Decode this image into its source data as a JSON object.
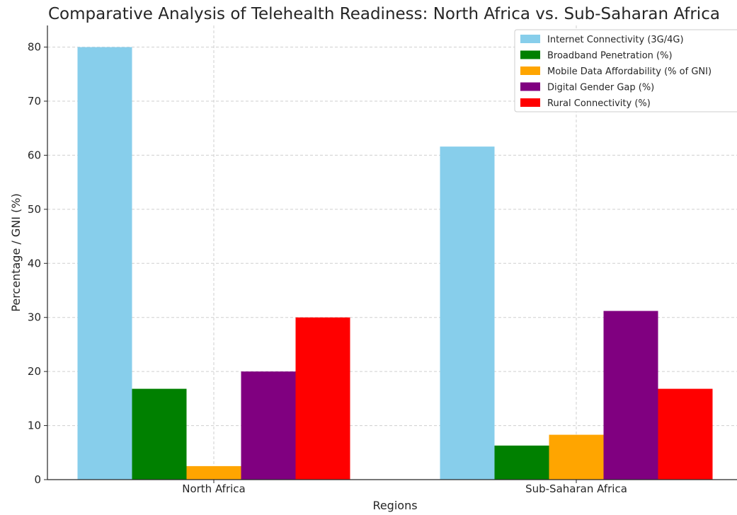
{
  "chart_data": {
    "type": "bar",
    "title": "Comparative Analysis of Telehealth Readiness: North Africa vs. Sub-Saharan Africa",
    "xlabel": "Regions",
    "ylabel": "Percentage / GNI (%)",
    "categories": [
      "North Africa",
      "Sub-Saharan Africa"
    ],
    "ylim": [
      0,
      84
    ],
    "yticks": [
      0,
      10,
      20,
      30,
      40,
      50,
      60,
      70,
      80
    ],
    "grid": true,
    "legend_position": "top-right",
    "series": [
      {
        "name": "Internet Connectivity (3G/4G)",
        "color": "#87CEEB",
        "values": [
          80,
          61.6
        ]
      },
      {
        "name": "Broadband Penetration (%)",
        "color": "#008000",
        "values": [
          16.8,
          6.3
        ]
      },
      {
        "name": "Mobile Data Affordability (% of GNI)",
        "color": "#FFA500",
        "values": [
          2.5,
          8.3
        ]
      },
      {
        "name": "Digital Gender Gap (%)",
        "color": "#800080",
        "values": [
          20,
          31.2
        ]
      },
      {
        "name": "Rural Connectivity (%)",
        "color": "#FF0000",
        "values": [
          30,
          16.8
        ]
      }
    ]
  }
}
